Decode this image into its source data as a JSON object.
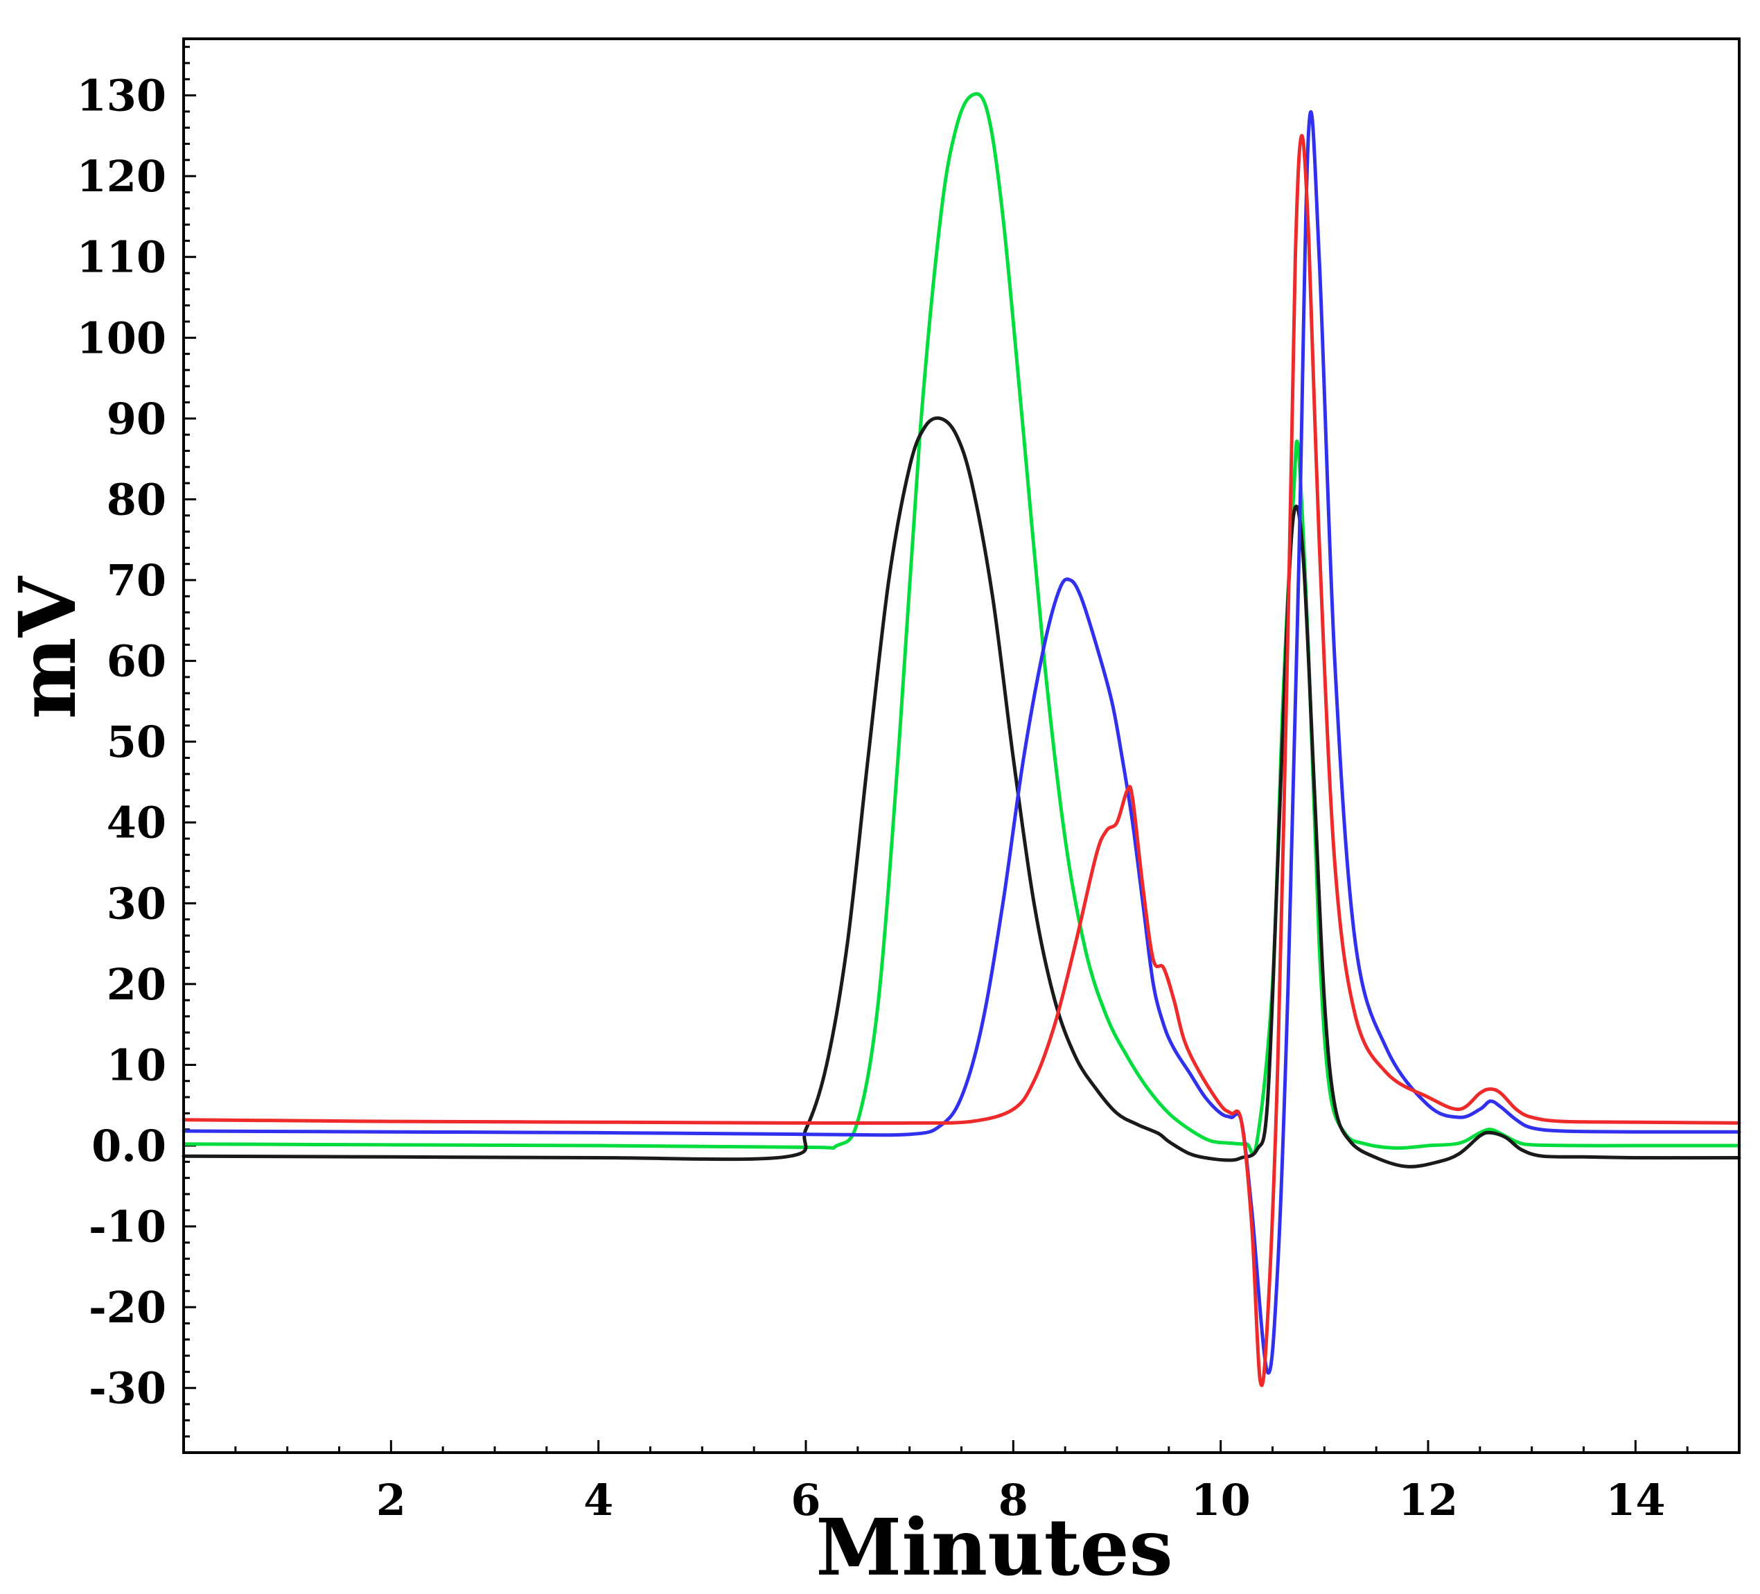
{
  "chart_data": {
    "type": "line",
    "title": "",
    "xlabel": "Minutes",
    "ylabel": "mV",
    "xlim": [
      0,
      15
    ],
    "ylim": [
      -38,
      137
    ],
    "x_ticks": [
      2,
      4,
      6,
      8,
      10,
      12,
      14
    ],
    "x_tick_labels": [
      "2",
      "4",
      "6",
      "8",
      "10",
      "12",
      "14"
    ],
    "y_ticks": [
      130,
      120,
      110,
      100,
      90,
      80,
      70,
      60,
      50,
      40,
      30,
      20,
      10,
      0,
      -10,
      -20,
      -30
    ],
    "y_tick_labels": [
      "130",
      "120",
      "110",
      "100",
      "90",
      "80",
      "70",
      "60",
      "50",
      "40",
      "30",
      "20",
      "10",
      "0.0",
      "-10",
      "-20",
      "-30"
    ],
    "grid": false,
    "legend": "none",
    "series": [
      {
        "name": "green",
        "color": "#00dd3c",
        "x": [
          0,
          2,
          4,
          6,
          6.3,
          6.5,
          6.7,
          6.9,
          7.1,
          7.3,
          7.45,
          7.6,
          7.75,
          7.9,
          8.1,
          8.3,
          8.5,
          8.7,
          8.9,
          9.1,
          9.3,
          9.5,
          9.7,
          9.9,
          10.1,
          10.25,
          10.35,
          10.5,
          10.6,
          10.7,
          10.75,
          10.85,
          10.95,
          11.05,
          11.2,
          11.4,
          11.7,
          12.0,
          12.3,
          12.5,
          12.6,
          12.7,
          12.85,
          13.0,
          13.5,
          14,
          15
        ],
        "y": [
          0.2,
          0.1,
          0,
          -0.2,
          0,
          3,
          18,
          50,
          88,
          115,
          126,
          130,
          128,
          115,
          88,
          60,
          38,
          24,
          16,
          11,
          7,
          4,
          2,
          0.6,
          0.3,
          0.2,
          0.5,
          20,
          55,
          80,
          86,
          60,
          25,
          7,
          1.5,
          0.2,
          -0.3,
          0,
          0.3,
          1.6,
          2,
          1.5,
          0.5,
          0.1,
          0,
          0,
          0
        ]
      },
      {
        "name": "black",
        "color": "#1a1a1a",
        "x": [
          0,
          2,
          4,
          5.8,
          6.0,
          6.2,
          6.4,
          6.6,
          6.8,
          7.0,
          7.15,
          7.3,
          7.45,
          7.6,
          7.8,
          8.0,
          8.2,
          8.4,
          8.6,
          8.8,
          9.0,
          9.2,
          9.4,
          9.5,
          9.7,
          9.9,
          10.1,
          10.2,
          10.35,
          10.45,
          10.55,
          10.65,
          10.72,
          10.8,
          10.9,
          11.0,
          11.1,
          11.25,
          11.5,
          11.8,
          12.1,
          12.3,
          12.5,
          12.6,
          12.75,
          12.9,
          13.1,
          13.5,
          14,
          15
        ],
        "y": [
          -1.3,
          -1.4,
          -1.5,
          -1.4,
          2,
          10,
          25,
          48,
          70,
          84,
          89,
          90,
          88,
          82,
          68,
          48,
          30,
          18,
          11,
          7,
          4,
          2.6,
          1.5,
          0.5,
          -1,
          -1.6,
          -1.8,
          -1.5,
          -0.5,
          5,
          35,
          68,
          79,
          72,
          45,
          18,
          5,
          0.5,
          -1.5,
          -2.6,
          -2,
          -1,
          1.2,
          1.6,
          1,
          -0.5,
          -1.3,
          -1.4,
          -1.5,
          -1.5
        ]
      },
      {
        "name": "blue",
        "color": "#3030ee",
        "x": [
          0,
          2,
          4,
          6,
          7,
          7.3,
          7.5,
          7.7,
          7.9,
          8.1,
          8.3,
          8.45,
          8.55,
          8.65,
          8.8,
          8.95,
          9.05,
          9.15,
          9.25,
          9.35,
          9.45,
          9.55,
          9.7,
          9.85,
          10.0,
          10.1,
          10.2,
          10.3,
          10.45,
          10.55,
          10.65,
          10.75,
          10.85,
          10.95,
          11.1,
          11.3,
          11.6,
          12.0,
          12.3,
          12.5,
          12.6,
          12.7,
          12.85,
          13.0,
          13.3,
          14,
          15
        ],
        "y": [
          1.8,
          1.7,
          1.6,
          1.4,
          1.4,
          2.5,
          6,
          15,
          30,
          48,
          62,
          69,
          70,
          68,
          62,
          55,
          48,
          40,
          30,
          20,
          15,
          12,
          9,
          6,
          4,
          3.5,
          3,
          -8,
          -28,
          -15,
          20,
          70,
          126,
          110,
          60,
          25,
          12,
          5,
          3.5,
          4.5,
          5.5,
          4.8,
          3.2,
          2.2,
          1.8,
          1.7,
          1.7
        ]
      },
      {
        "name": "red",
        "color": "#ee2a2a",
        "x": [
          0,
          2,
          4,
          6,
          7,
          7.6,
          8.0,
          8.2,
          8.4,
          8.6,
          8.8,
          8.9,
          9.0,
          9.1,
          9.15,
          9.25,
          9.35,
          9.45,
          9.55,
          9.65,
          9.8,
          10.0,
          10.1,
          10.2,
          10.3,
          10.38,
          10.45,
          10.55,
          10.65,
          10.72,
          10.78,
          10.85,
          10.95,
          11.1,
          11.3,
          11.6,
          12.0,
          12.3,
          12.5,
          12.6,
          12.7,
          12.85,
          13.0,
          13.3,
          14,
          15
        ],
        "y": [
          3.2,
          3.0,
          2.9,
          2.8,
          2.8,
          3.0,
          4.5,
          8,
          15,
          25,
          36,
          39,
          40,
          44,
          43,
          32,
          23,
          22,
          18,
          13,
          9,
          5,
          4,
          3,
          -10,
          -29,
          -22,
          10,
          65,
          110,
          125,
          112,
          75,
          35,
          16,
          9,
          6,
          4.5,
          6.5,
          7,
          6.5,
          4.5,
          3.5,
          3,
          2.9,
          2.8
        ]
      }
    ]
  }
}
